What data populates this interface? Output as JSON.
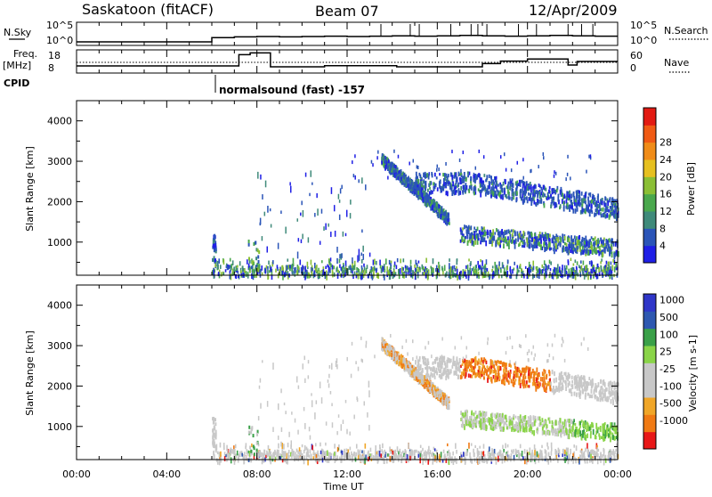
{
  "header": {
    "station": "Saskatoon (fitACF)",
    "beam": "Beam 07",
    "date": "12/Apr/2009"
  },
  "strip1": {
    "left_label": "N.Sky",
    "right_label": "N.Search",
    "left_ticks": [
      "10^5",
      "10^0"
    ],
    "right_ticks": [
      "10^5",
      "10^0"
    ]
  },
  "strip2": {
    "left_label_1": "Freq.",
    "left_label_2": "[MHz]",
    "right_label": "Nave",
    "left_ticks": [
      "18",
      "8"
    ],
    "right_ticks": [
      "60",
      "0"
    ]
  },
  "cpid": {
    "label": "CPID",
    "mode": "normalsound (fast) -157"
  },
  "colors": {
    "power_scale": [
      "#1f1fe6",
      "#2b55b8",
      "#3f8a7a",
      "#4aa84d",
      "#8bbf35",
      "#e6c020",
      "#f08c18",
      "#f05a14",
      "#e21a12"
    ],
    "velocity_scale": [
      "#e81818",
      "#f07a14",
      "#f0a628",
      "#c8c8c8",
      "#c8c8c8",
      "#8ad448",
      "#3aa048",
      "#2e58b0",
      "#2f36c8"
    ]
  },
  "chart_data": [
    {
      "type": "line",
      "panel": "N.Sky / N.Search",
      "x_unit": "hours UT",
      "series": [
        {
          "x": [
            0,
            6.0,
            6.0,
            7.0,
            8.0,
            9.0,
            10.0,
            11.0,
            12.0,
            13.0,
            14.0,
            15.0,
            16.0,
            17.0,
            18.0,
            19.0,
            20.0,
            21.0,
            22.0,
            23.0,
            24.0
          ],
          "y": [
            0,
            0,
            1.2,
            1.4,
            1.5,
            1.4,
            1.5,
            1.6,
            1.5,
            1.6,
            1.7,
            1.6,
            1.7,
            1.8,
            1.7,
            1.6,
            1.7,
            1.8,
            1.7,
            1.6,
            1.6
          ]
        }
      ]
    },
    {
      "type": "line",
      "panel": "Freq. / Nave",
      "x_unit": "hours UT",
      "ylim": [
        8,
        18
      ],
      "series": [
        {
          "x": [
            0,
            6.0,
            6.0,
            7.2,
            7.2,
            7.7,
            7.7,
            8.6,
            8.6,
            11.0,
            11.0,
            14.2,
            14.2,
            18.0,
            18.0,
            18.8,
            18.8,
            20.0,
            20.0,
            21.8,
            21.8,
            22.2,
            22.2,
            24.0
          ],
          "y": [
            10.5,
            10.5,
            10.5,
            10.5,
            16.8,
            16.8,
            17.8,
            17.8,
            10.0,
            10.0,
            10.6,
            10.6,
            10.0,
            10.0,
            11.8,
            11.8,
            13.2,
            13.2,
            14.4,
            14.4,
            11.0,
            11.0,
            13.0,
            13.0
          ]
        },
        {
          "x": [
            0,
            24
          ],
          "y": [
            12.5,
            12.5
          ]
        }
      ]
    },
    {
      "type": "heatmap",
      "panel": "Power",
      "x_ticks": [
        "00:00",
        "04:00",
        "08:00",
        "12:00",
        "16:00",
        "20:00",
        "00:00"
      ],
      "y_ticks": [
        "1000",
        "2000",
        "3000",
        "4000"
      ],
      "ylabel": "Slant Range [km]",
      "xlabel": "Time UT",
      "xlim": [
        0,
        24
      ],
      "ylim": [
        180,
        4500
      ],
      "colorbar": {
        "label": "Power [dB]",
        "ticks": [
          "4",
          "8",
          "12",
          "16",
          "20",
          "24",
          "28"
        ],
        "range": [
          0,
          30
        ]
      }
    },
    {
      "type": "heatmap",
      "panel": "Velocity",
      "x_ticks": [
        "00:00",
        "04:00",
        "08:00",
        "12:00",
        "16:00",
        "20:00",
        "00:00"
      ],
      "y_ticks": [
        "1000",
        "2000",
        "3000",
        "4000"
      ],
      "ylabel": "Slant Range [km]",
      "xlabel": "Time UT",
      "xlim": [
        0,
        24
      ],
      "ylim": [
        180,
        4500
      ],
      "colorbar": {
        "label": "Velocity [m s-1]",
        "ticks": [
          "1000",
          "500",
          "100",
          "25",
          "-25",
          "-100",
          "-500",
          "-1000"
        ]
      }
    }
  ]
}
